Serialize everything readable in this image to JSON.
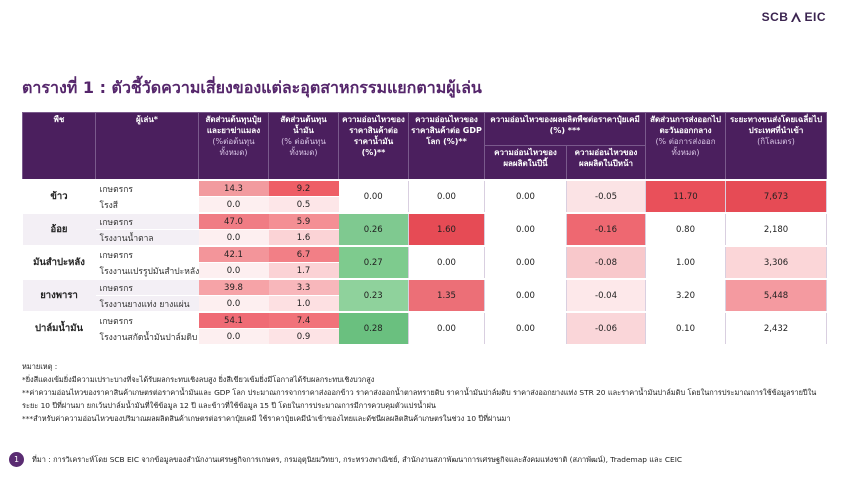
{
  "logo": [
    "SCB",
    "EIC"
  ],
  "title": "ตารางที่ 1 : ตัวชี้วัดความเสี่ยงของแต่ละอุตสาหกรรมแยกตามผู้เล่น",
  "table": {
    "headers": [
      {
        "text": "พืช"
      },
      {
        "text": "ผู้เล่น*"
      },
      {
        "text": "สัดส่วนต้นทุนปุ๋ยและยาฆ่าแมลง",
        "unit": "(%ต่อต้นทุนทั้งหมด)"
      },
      {
        "text": "สัดส่วนต้นทุนน้ำมัน",
        "unit": "(% ต่อต้นทุนทั้งหมด)"
      },
      {
        "text": "ความอ่อนไหวของราคาสินค้าต่อราคาน้ำมัน (%)**"
      },
      {
        "text": "ความอ่อนไหวของราคาสินค้าต่อ GDP โลก (%)**"
      },
      {
        "text": "ความอ่อนไหวของผลผลิตพืชต่อราคาปุ๋ยเคมี (%) ***",
        "sub": [
          "ความอ่อนไหวของผลผลิตในปีนี้",
          "ความอ่อนไหวของผลผลิตในปีหน้า"
        ]
      },
      {
        "text": "สัดส่วนการส่งออกไปตะวันออกกลาง",
        "unit": "(% ต่อการส่งออกทั้งหมด)"
      },
      {
        "text": "ระยะทางขนส่งโดยเฉลี่ยไปประเทศที่นำเข้า",
        "unit": "(กิโลเมตร)"
      }
    ],
    "rows": [
      {
        "crop": "ข้าว",
        "players": [
          {
            "name": "เกษตรกร",
            "fertilizer": "14.3",
            "oil": "9.2"
          },
          {
            "name": "โรงสี",
            "fertilizer": "0.0",
            "oil": "0.5"
          }
        ],
        "price_oil": "0.00",
        "price_gdp": "0.00",
        "yield_this_year": "0.00",
        "yield_next_year": "-0.05",
        "export_middle_east": "11.70",
        "distance": "7,673"
      },
      {
        "crop": "อ้อย",
        "players": [
          {
            "name": "เกษตรกร",
            "fertilizer": "47.0",
            "oil": "5.9"
          },
          {
            "name": "โรงงานน้ำตาล",
            "fertilizer": "0.0",
            "oil": "1.6"
          }
        ],
        "price_oil": "0.26",
        "price_gdp": "1.60",
        "yield_this_year": "0.00",
        "yield_next_year": "-0.16",
        "export_middle_east": "0.80",
        "distance": "2,180"
      },
      {
        "crop": "มันสำปะหลัง",
        "players": [
          {
            "name": "เกษตรกร",
            "fertilizer": "42.1",
            "oil": "6.7"
          },
          {
            "name": "โรงงานแปรรูปมันสำปะหลัง",
            "fertilizer": "0.0",
            "oil": "1.7"
          }
        ],
        "price_oil": "0.27",
        "price_gdp": "0.00",
        "yield_this_year": "0.00",
        "yield_next_year": "-0.08",
        "export_middle_east": "1.00",
        "distance": "3,306"
      },
      {
        "crop": "ยางพารา",
        "players": [
          {
            "name": "เกษตรกร",
            "fertilizer": "39.8",
            "oil": "3.3"
          },
          {
            "name": "โรงงานยางแท่ง ยางแผ่น",
            "fertilizer": "0.0",
            "oil": "1.0"
          }
        ],
        "price_oil": "0.23",
        "price_gdp": "1.35",
        "yield_this_year": "0.00",
        "yield_next_year": "-0.04",
        "export_middle_east": "3.20",
        "distance": "5,448"
      },
      {
        "crop": "ปาล์มน้ำมัน",
        "players": [
          {
            "name": "เกษตรกร",
            "fertilizer": "54.1",
            "oil": "7.4"
          },
          {
            "name": "โรงงานสกัดน้ำมันปาล์มดิบ",
            "fertilizer": "0.0",
            "oil": "0.9"
          }
        ],
        "price_oil": "0.28",
        "price_gdp": "0.00",
        "yield_this_year": "0.00",
        "yield_next_year": "-0.06",
        "export_middle_east": "0.10",
        "distance": "2,432"
      }
    ]
  },
  "notes": {
    "heading": "หมายเหตุ :",
    "items": [
      "*ยิ่งสีแดงเข้มยิ่งมีความเปราะบางที่จะได้รับผลกระทบเชิงลบสูง ยิ่งสีเขียวเข้มยิ่งมีโอกาสได้รับผลกระทบเชิงบวกสูง",
      "**ค่าความอ่อนไหวของราคาสินค้าเกษตรต่อราคาน้ำมันและ GDP โลก ประมาณการจากราคาส่งออกข้าว ราคาส่งออกน้ำตาลทรายดิบ ราคาน้ำมันปาล์มดิบ ราคาส่งออกยางแท่ง STR 20 และราคาน้ำมันปาล์มดิบ โดยในการประมาณการใช้ข้อมูลรายปีในระยะ 10 ปีที่ผ่านมา ยกเว้นปาล์มน้ำมันที่ใช้ข้อมูล 12 ปี และข้าวที่ใช้ข้อมูล 15 ปี โดยในการประมาณการมีการควบคุมตัวแปรน้ำฝน",
      "***สำหรับค่าความอ่อนไหวของปริมาณผลผลิตสินค้าเกษตรต่อราคาปุ๋ยเคมี ใช้ราคาปุ๋ยเคมีนำเข้าของไทยและดัชนีผลผลิตสินค้าเกษตรในช่วง 10 ปีที่ผ่านมา"
    ]
  },
  "source": {
    "number": "1",
    "text": "ที่มา : การวิเคราะห์โดย SCB EIC จากข้อมูลของสำนักงานเศรษฐกิจการเกษตร, กรมอุตุนิยมวิทยา, กระทรวงพาณิชย์, สำนักงานสภาพัฒนาการเศรษฐกิจและสังคมแห่งชาติ (สภาพัฒน์), Trademap และ CEIC"
  }
}
